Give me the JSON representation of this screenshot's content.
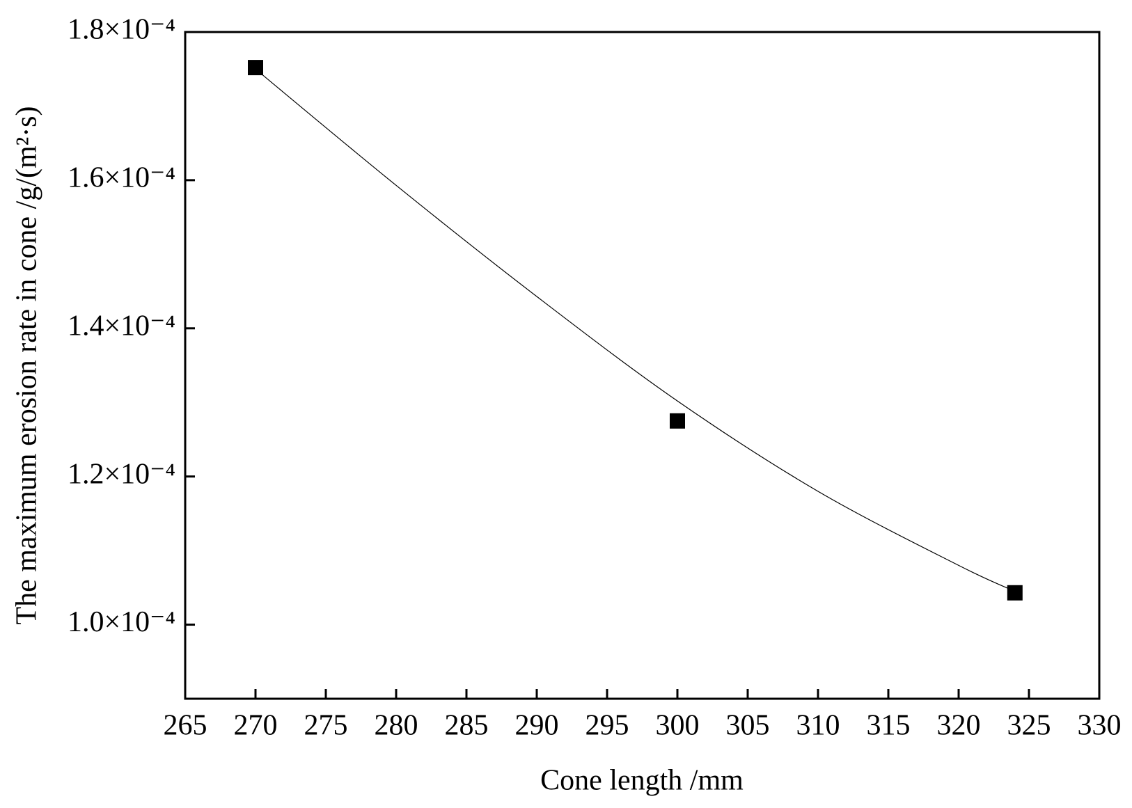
{
  "chart_data": {
    "type": "scatter",
    "x_label": "Cone length /mm",
    "y_label": "The maximum erosion rate in cone /g/(m²·s)",
    "xlim": [
      265,
      330
    ],
    "xticks": [
      265,
      270,
      275,
      280,
      285,
      290,
      295,
      300,
      305,
      310,
      315,
      320,
      325,
      330
    ],
    "ylim": [
      9e-05,
      0.00018
    ],
    "yticks": [
      {
        "value": 0.0001,
        "label": "1.0×10⁻⁴"
      },
      {
        "value": 0.00012,
        "label": "1.2×10⁻⁴"
      },
      {
        "value": 0.00014,
        "label": "1.4×10⁻⁴"
      },
      {
        "value": 0.00016,
        "label": "1.6×10⁻⁴"
      },
      {
        "value": 0.00018,
        "label": "1.8×10⁻⁴"
      }
    ],
    "series": [
      {
        "mode": "markers",
        "color": "#000000",
        "x": [
          270,
          300,
          324
        ],
        "values": [
          0.0001752,
          0.0001275,
          0.0001043
        ]
      },
      {
        "mode": "line",
        "color": "#000000",
        "x": [
          270,
          280,
          290,
          300,
          310,
          320,
          324
        ],
        "values": [
          0.000175,
          0.0001593,
          0.0001443,
          0.0001302,
          0.000118,
          0.000108,
          0.0001045
        ]
      }
    ]
  }
}
